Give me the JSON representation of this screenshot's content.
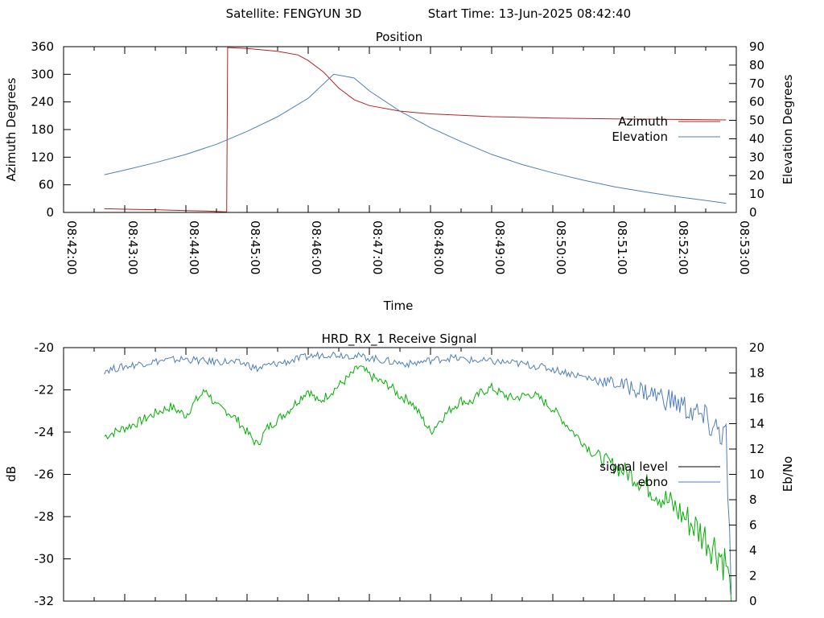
{
  "header": {
    "satellite": "Satellite: FENGYUN 3D",
    "start_time": "Start Time: 13-Jun-2025 08:42:40"
  },
  "colors": {
    "azimuth": "#b22222",
    "elevation": "#4f7fb8",
    "signal_level": "#00b000",
    "ebno": "#4f7fb8",
    "axes": "#000000"
  },
  "chart_data": [
    {
      "type": "line",
      "title": "Position",
      "xlabel": "Time",
      "ylabel": "Azimuth Degrees",
      "y2label": "Elevation Degrees",
      "xlim": [
        "08:42:00",
        "08:53:00"
      ],
      "ylim": [
        0,
        360
      ],
      "y2lim": [
        0,
        90
      ],
      "x_ticks": [
        "08:42:00",
        "08:43:00",
        "08:44:00",
        "08:45:00",
        "08:46:00",
        "08:47:00",
        "08:48:00",
        "08:49:00",
        "08:50:00",
        "08:51:00",
        "08:52:00",
        "08:53:00"
      ],
      "y_ticks": [
        0,
        60,
        120,
        180,
        240,
        300,
        360
      ],
      "y2_ticks": [
        0,
        10,
        20,
        30,
        40,
        50,
        60,
        70,
        80,
        90
      ],
      "legend_position": "right",
      "series": [
        {
          "name": "Azimuth",
          "axis": "left",
          "x": [
            "08:42:40",
            "08:43:00",
            "08:43:30",
            "08:44:00",
            "08:44:20",
            "08:44:40",
            "08:44:41",
            "08:45:00",
            "08:45:30",
            "08:45:50",
            "08:46:00",
            "08:46:15",
            "08:46:30",
            "08:46:45",
            "08:47:00",
            "08:47:30",
            "08:48:00",
            "08:49:00",
            "08:50:00",
            "08:51:00",
            "08:52:00",
            "08:52:50"
          ],
          "values": [
            8,
            7,
            6,
            4,
            3,
            1,
            358,
            356,
            350,
            342,
            330,
            305,
            270,
            245,
            232,
            220,
            214,
            208,
            205,
            203,
            202,
            201
          ]
        },
        {
          "name": "Elevation",
          "axis": "right",
          "x": [
            "08:42:40",
            "08:43:00",
            "08:43:30",
            "08:44:00",
            "08:44:30",
            "08:45:00",
            "08:45:30",
            "08:46:00",
            "08:46:25",
            "08:46:45",
            "08:47:00",
            "08:47:30",
            "08:48:00",
            "08:48:30",
            "08:49:00",
            "08:49:30",
            "08:50:00",
            "08:50:30",
            "08:51:00",
            "08:51:30",
            "08:52:00",
            "08:52:30",
            "08:52:50"
          ],
          "values": [
            20.5,
            23,
            27,
            31.5,
            37,
            44,
            52,
            62,
            75,
            73,
            66,
            55,
            46,
            38.5,
            31.5,
            26,
            21.5,
            17.5,
            14,
            11.2,
            8.7,
            6.5,
            5
          ]
        }
      ]
    },
    {
      "type": "line",
      "title": "HRD_RX_1 Receive Signal",
      "ylabel": "dB",
      "y2label": "Eb/No",
      "xlim": [
        "08:42:00",
        "08:53:00"
      ],
      "ylim": [
        -32,
        -20
      ],
      "y2lim": [
        0,
        20
      ],
      "y_ticks": [
        -32,
        -30,
        -28,
        -26,
        -24,
        -22,
        -20
      ],
      "y2_ticks": [
        0,
        2,
        4,
        6,
        8,
        10,
        12,
        14,
        16,
        18,
        20
      ],
      "legend_position": "right",
      "series": [
        {
          "name": "signal level",
          "axis": "left",
          "x": [
            "08:42:40",
            "08:43:00",
            "08:43:15",
            "08:43:30",
            "08:43:45",
            "08:44:00",
            "08:44:10",
            "08:44:20",
            "08:44:30",
            "08:44:40",
            "08:44:50",
            "08:45:00",
            "08:45:10",
            "08:45:20",
            "08:45:30",
            "08:45:40",
            "08:45:50",
            "08:46:00",
            "08:46:10",
            "08:46:20",
            "08:46:30",
            "08:46:40",
            "08:46:50",
            "08:47:00",
            "08:47:10",
            "08:47:20",
            "08:47:30",
            "08:47:40",
            "08:47:50",
            "08:48:00",
            "08:48:10",
            "08:48:20",
            "08:48:30",
            "08:48:40",
            "08:48:50",
            "08:49:00",
            "08:49:10",
            "08:49:20",
            "08:49:30",
            "08:49:40",
            "08:49:50",
            "08:50:00",
            "08:50:20",
            "08:50:40",
            "08:51:00",
            "08:51:20",
            "08:51:40",
            "08:52:00",
            "08:52:20",
            "08:52:40",
            "08:52:50",
            "08:52:55"
          ],
          "values": [
            -24.2,
            -23.8,
            -23.5,
            -23.1,
            -22.8,
            -23.2,
            -22.5,
            -22.0,
            -22.8,
            -23.0,
            -23.4,
            -24.0,
            -24.6,
            -23.8,
            -23.4,
            -23.0,
            -22.5,
            -22.0,
            -22.6,
            -22.2,
            -21.8,
            -21.4,
            -20.9,
            -21.3,
            -21.6,
            -21.8,
            -22.3,
            -22.5,
            -23.2,
            -24.0,
            -23.4,
            -22.9,
            -22.5,
            -22.6,
            -22.1,
            -21.9,
            -22.2,
            -22.4,
            -22.3,
            -22.2,
            -22.5,
            -22.9,
            -24.0,
            -25.0,
            -25.6,
            -26.1,
            -26.8,
            -27.6,
            -28.5,
            -29.5,
            -30.2,
            -32.0
          ]
        },
        {
          "name": "ebno",
          "axis": "right",
          "x": [
            "08:42:40",
            "08:43:00",
            "08:43:20",
            "08:43:40",
            "08:44:00",
            "08:44:20",
            "08:44:40",
            "08:45:00",
            "08:45:10",
            "08:45:20",
            "08:45:40",
            "08:46:00",
            "08:46:20",
            "08:46:40",
            "08:47:00",
            "08:47:20",
            "08:47:40",
            "08:48:00",
            "08:48:20",
            "08:48:40",
            "08:49:00",
            "08:49:20",
            "08:49:40",
            "08:50:00",
            "08:50:20",
            "08:50:40",
            "08:51:00",
            "08:51:20",
            "08:51:40",
            "08:52:00",
            "08:52:20",
            "08:52:40",
            "08:52:50",
            "08:52:55"
          ],
          "values": [
            18.2,
            18.5,
            18.8,
            19.0,
            19.1,
            18.9,
            18.9,
            18.7,
            18.3,
            18.6,
            18.9,
            19.3,
            19.5,
            19.4,
            19.2,
            18.9,
            18.7,
            19.0,
            19.2,
            19.0,
            18.9,
            18.8,
            18.6,
            18.3,
            17.9,
            17.5,
            17.2,
            16.8,
            16.3,
            15.7,
            14.8,
            13.6,
            13.0,
            0.5
          ]
        }
      ]
    }
  ]
}
